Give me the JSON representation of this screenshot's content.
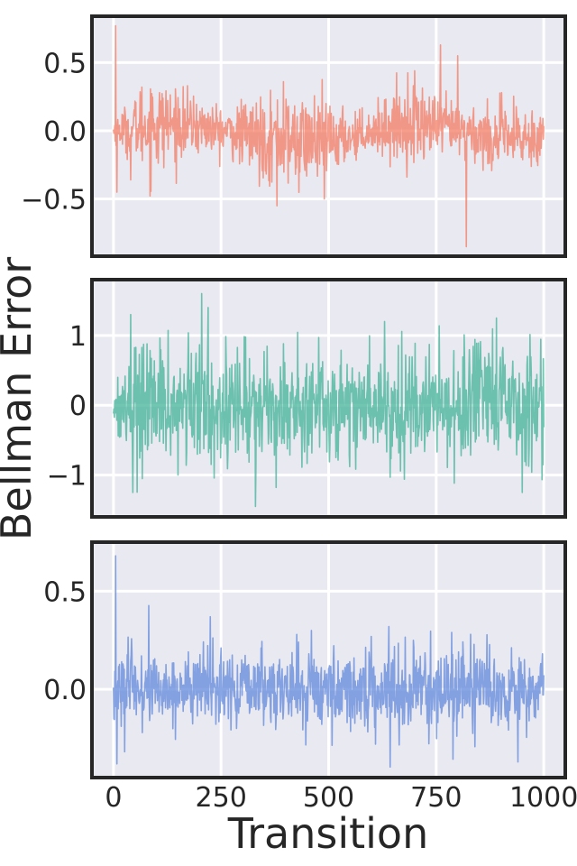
{
  "chart_data": {
    "type": "line",
    "shared_ylabel": "Bellman Error",
    "shared_xlabel": "Transition",
    "x_ticks": [
      0,
      250,
      500,
      750,
      1000
    ],
    "x_tick_labels": [
      "0",
      "250",
      "500",
      "750",
      "1000"
    ],
    "xlim": [
      -50,
      1050
    ],
    "grid": true,
    "n_transitions": 1000,
    "panels": [
      {
        "color": "#f4775e",
        "ylim": [
          -0.92,
          0.84
        ],
        "yticks": [
          -0.5,
          0.0,
          0.5
        ],
        "ytick_labels": [
          "−0.5",
          "0.0",
          "0.5"
        ],
        "typical_amplitude": 0.1,
        "envelope": [
          [
            0,
            0.05
          ],
          [
            40,
            0.12
          ],
          [
            80,
            0.22
          ],
          [
            150,
            0.14
          ],
          [
            250,
            0.1
          ],
          [
            330,
            0.16
          ],
          [
            400,
            0.2
          ],
          [
            480,
            0.18
          ],
          [
            540,
            0.12
          ],
          [
            600,
            0.08
          ],
          [
            650,
            0.15
          ],
          [
            720,
            0.17
          ],
          [
            780,
            0.12
          ],
          [
            850,
            0.13
          ],
          [
            920,
            0.15
          ],
          [
            1000,
            0.12
          ]
        ],
        "bias": [
          [
            0,
            0.0
          ],
          [
            100,
            0.05
          ],
          [
            180,
            0.04
          ],
          [
            250,
            0.0
          ],
          [
            320,
            -0.04
          ],
          [
            420,
            -0.08
          ],
          [
            520,
            -0.06
          ],
          [
            600,
            0.0
          ],
          [
            680,
            0.05
          ],
          [
            740,
            0.04
          ],
          [
            800,
            0.0
          ],
          [
            880,
            -0.05
          ],
          [
            950,
            -0.06
          ],
          [
            1000,
            -0.02
          ]
        ],
        "spikes": [
          [
            5,
            0.77
          ],
          [
            8,
            -0.45
          ],
          [
            40,
            -0.36
          ],
          [
            380,
            -0.55
          ],
          [
            490,
            -0.5
          ],
          [
            760,
            0.63
          ],
          [
            800,
            0.55
          ],
          [
            820,
            -0.85
          ],
          [
            700,
            0.44
          ],
          [
            395,
            0.36
          ]
        ]
      },
      {
        "color": "#3ab094",
        "ylim": [
          -1.6,
          1.8
        ],
        "yticks": [
          -1,
          0,
          1
        ],
        "ytick_labels": [
          "−1",
          "0",
          "1"
        ],
        "typical_amplitude": 0.35,
        "envelope": [
          [
            0,
            0.2
          ],
          [
            40,
            0.4
          ],
          [
            60,
            0.6
          ],
          [
            150,
            0.45
          ],
          [
            250,
            0.5
          ],
          [
            350,
            0.45
          ],
          [
            450,
            0.45
          ],
          [
            550,
            0.5
          ],
          [
            650,
            0.45
          ],
          [
            750,
            0.45
          ],
          [
            850,
            0.5
          ],
          [
            1000,
            0.5
          ]
        ],
        "bias": [
          [
            0,
            0.0
          ],
          [
            1000,
            0.0
          ]
        ],
        "spikes": [
          [
            40,
            1.3
          ],
          [
            45,
            -1.25
          ],
          [
            205,
            1.6
          ],
          [
            330,
            -1.45
          ],
          [
            220,
            1.4
          ],
          [
            890,
            1.25
          ],
          [
            950,
            -1.25
          ],
          [
            630,
            1.2
          ],
          [
            150,
            -1.0
          ]
        ]
      },
      {
        "color": "#5b84d9",
        "ylim": [
          -0.45,
          0.75
        ],
        "yticks": [
          0.0,
          0.5
        ],
        "ytick_labels": [
          "0.0",
          "0.5"
        ],
        "typical_amplitude": 0.1,
        "envelope": [
          [
            0,
            0.12
          ],
          [
            40,
            0.12
          ],
          [
            100,
            0.11
          ],
          [
            200,
            0.12
          ],
          [
            300,
            0.11
          ],
          [
            500,
            0.11
          ],
          [
            700,
            0.12
          ],
          [
            900,
            0.12
          ],
          [
            1000,
            0.11
          ]
        ],
        "bias": [
          [
            0,
            0.0
          ],
          [
            1000,
            0.0
          ]
        ],
        "spikes": [
          [
            5,
            0.68
          ],
          [
            8,
            -0.38
          ],
          [
            225,
            0.37
          ],
          [
            640,
            0.32
          ],
          [
            940,
            -0.37
          ],
          [
            460,
            0.3
          ],
          [
            830,
            0.28
          ]
        ]
      }
    ]
  }
}
